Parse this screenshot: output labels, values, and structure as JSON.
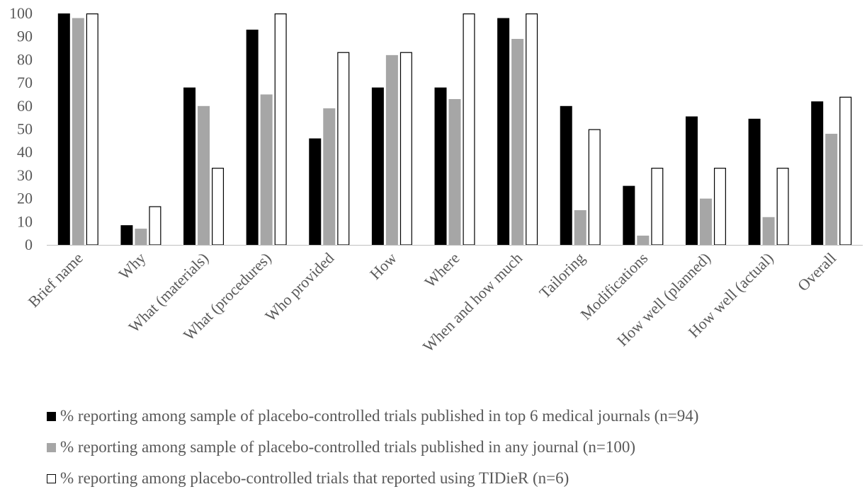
{
  "chart_data": {
    "type": "bar",
    "categories": [
      "Brief name",
      "Why",
      "What (materials)",
      "What (procedures)",
      "Who provided",
      "How",
      "Where",
      "When and how much",
      "Tailoring",
      "Modifications",
      "How well (planned)",
      "How well (actual)",
      "Overall"
    ],
    "series": [
      {
        "name": "% reporting among sample of placebo-controlled trials published in top 6 medical journals (n=94)",
        "color": "#000000",
        "border": "#000000",
        "values": [
          100,
          8.5,
          68,
          93,
          46,
          68,
          68,
          98,
          60,
          25.5,
          55.5,
          54.5,
          62
        ]
      },
      {
        "name": "% reporting among sample of placebo-controlled trials published in any journal (n=100)",
        "color": "#a6a6a6",
        "border": "#a6a6a6",
        "values": [
          98,
          7,
          60,
          65,
          59,
          82,
          63,
          89,
          15,
          4,
          20,
          12,
          48
        ]
      },
      {
        "name": "% reporting among placebo-controlled trials that reported using TIDieR (n=6)",
        "color": "#ffffff",
        "border": "#000000",
        "values": [
          100,
          16.7,
          33.3,
          100,
          83.3,
          83.3,
          100,
          100,
          50,
          33.3,
          33.3,
          33.3,
          64
        ]
      }
    ],
    "yticks": [
      0,
      10,
      20,
      30,
      40,
      50,
      60,
      70,
      80,
      90,
      100
    ],
    "ylim": [
      0,
      100
    ],
    "legend_position": "bottom",
    "grid": false,
    "title": "",
    "xlabel": "",
    "ylabel": ""
  }
}
